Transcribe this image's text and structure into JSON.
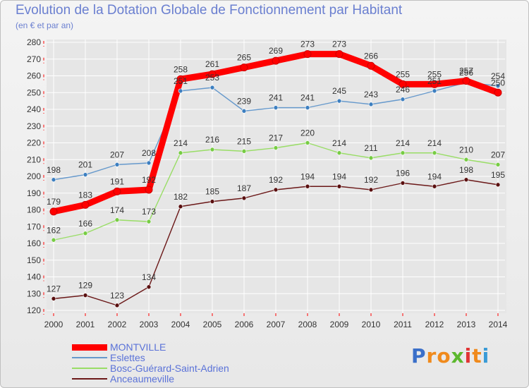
{
  "header": {
    "title": "Evolution de la Dotation Globale de Fonctionnement par Habitant",
    "subtitle": "(en € et par an)"
  },
  "colors": {
    "accent": "#6a7fd0",
    "grid": "#ffffff",
    "axis_text": "#333333",
    "tick_marks": "#ff0000"
  },
  "logo": {
    "letters": [
      "P",
      "r",
      "o",
      "x",
      "i",
      "t",
      "i"
    ],
    "colors": [
      "#3a6fc9",
      "#f08a1c",
      "#f08a1c",
      "#5cb82e",
      "#e03434",
      "#f08a1c",
      "#3a9bd6"
    ]
  },
  "chart_data": {
    "type": "line",
    "title": "Evolution de la Dotation Globale de Fonctionnement par Habitant",
    "subtitle": "(en € et par an)",
    "xlabel": "",
    "ylabel": "",
    "x": [
      "2000",
      "2001",
      "2002",
      "2003",
      "2004",
      "2005",
      "2006",
      "2007",
      "2008",
      "2009",
      "2010",
      "2011",
      "2012",
      "2013",
      "2014"
    ],
    "ylim": [
      120,
      280
    ],
    "yticks": [
      120,
      130,
      140,
      150,
      160,
      170,
      180,
      190,
      200,
      210,
      220,
      230,
      240,
      250,
      260,
      270,
      280
    ],
    "grid": true,
    "legend_position": "bottom-left",
    "series": [
      {
        "name": "Anceaumeville",
        "color": "#6b1818",
        "dot": "#5a1010",
        "values": [
          127,
          129,
          123,
          134,
          182,
          185,
          187,
          192,
          194,
          194,
          192,
          196,
          194,
          198,
          195
        ],
        "thick": false
      },
      {
        "name": "Bosc-Guérard-Saint-Adrien",
        "color": "#99dd66",
        "dot": "#77cc44",
        "values": [
          162,
          166,
          174,
          173,
          214,
          216,
          215,
          217,
          220,
          214,
          211,
          214,
          214,
          210,
          207
        ],
        "thick": false
      },
      {
        "name": "Eslettes",
        "color": "#6699cc",
        "dot": "#3d7fc0",
        "values": [
          198,
          201,
          207,
          208,
          251,
          253,
          239,
          241,
          241,
          245,
          243,
          246,
          251,
          256,
          254
        ],
        "thick": false
      },
      {
        "name": "MONTVILLE",
        "color": "#ff0000",
        "dot": "#ff0000",
        "values": [
          179,
          183,
          191,
          192,
          258,
          261,
          265,
          269,
          273,
          273,
          266,
          255,
          255,
          257,
          250
        ],
        "thick": true
      }
    ]
  }
}
